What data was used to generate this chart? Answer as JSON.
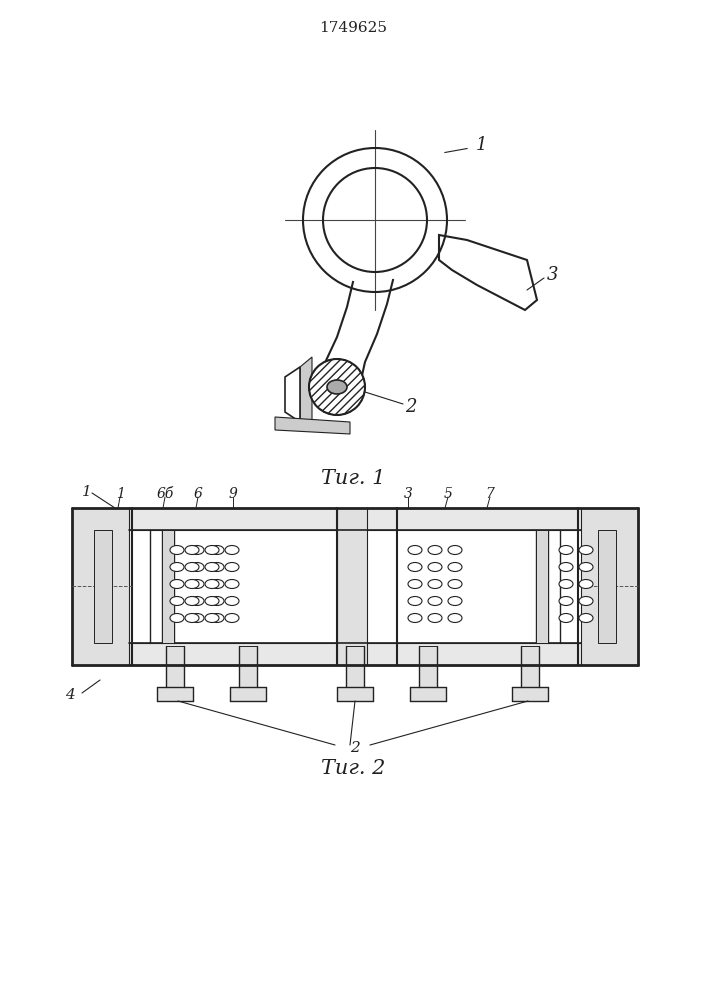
{
  "title": "1749625",
  "fig1_caption": "Τиг. 1",
  "fig2_caption": "Τиг. 2",
  "bg_color": "#ffffff",
  "line_color": "#222222",
  "fig_width": 7.07,
  "fig_height": 10.0,
  "dpi": 100
}
